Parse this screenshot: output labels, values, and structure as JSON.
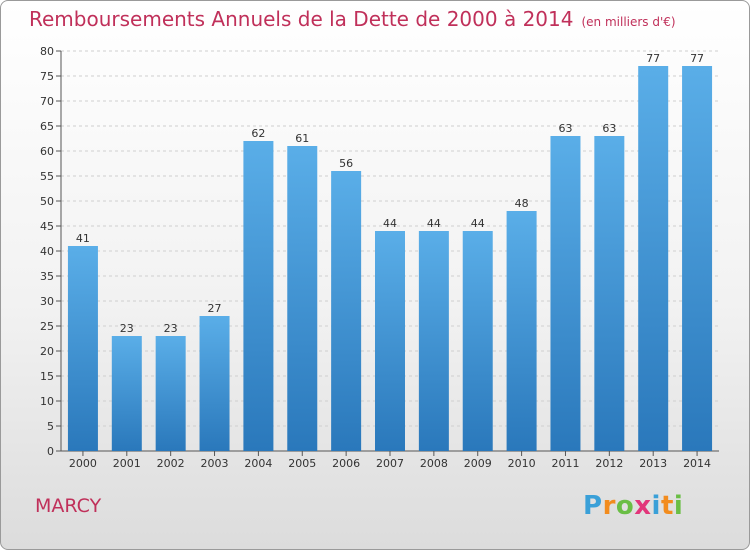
{
  "title": "Remboursements Annuels de la Dette de 2000 à 2014",
  "unit_note": "(en milliers d'€)",
  "commune": "MARCY",
  "logo": {
    "letters": [
      "P",
      "r",
      "o",
      "x",
      "i",
      "t",
      "i"
    ],
    "colors": [
      "#3aa0d8",
      "#f28c1e",
      "#6abe45",
      "#e2367a",
      "#3aa0d8",
      "#f28c1e",
      "#6abe45"
    ]
  },
  "colors": {
    "bar_top": "#5aaee8",
    "bar_bottom": "#2a78bb",
    "title": "#c0305a"
  },
  "chart_data": {
    "type": "bar",
    "title": "Remboursements Annuels de la Dette de 2000 à 2014",
    "xlabel": "",
    "ylabel": "",
    "categories": [
      "2000",
      "2001",
      "2002",
      "2003",
      "2004",
      "2005",
      "2006",
      "2007",
      "2008",
      "2009",
      "2010",
      "2011",
      "2012",
      "2013",
      "2014"
    ],
    "values": [
      41,
      23,
      23,
      27,
      62,
      61,
      56,
      44,
      44,
      44,
      48,
      63,
      63,
      77,
      77
    ],
    "ylim": [
      0,
      80
    ],
    "yticks": [
      0,
      5,
      10,
      15,
      20,
      25,
      30,
      35,
      40,
      45,
      50,
      55,
      60,
      65,
      70,
      75,
      80
    ],
    "grid": true
  }
}
